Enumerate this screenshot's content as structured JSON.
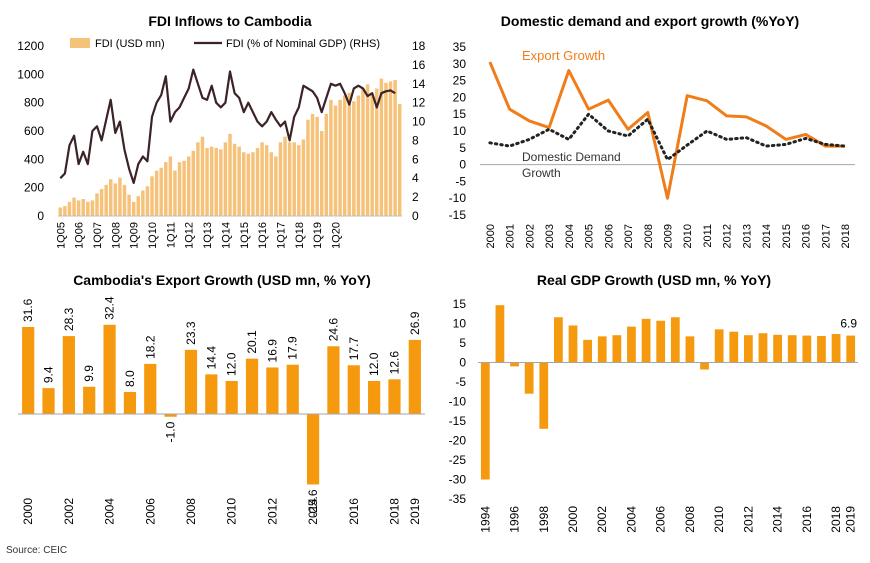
{
  "source": "Source: CEIC",
  "charts": [
    {
      "type": "bar",
      "title": "FDI Inflows to Cambodia",
      "legend": [
        "FDI (USD mn)",
        "FDI (% of Nominal GDP) (RHS)"
      ],
      "ylim": [
        0,
        1200
      ],
      "yticks": [
        0,
        200,
        400,
        600,
        800,
        1000,
        1200
      ],
      "y2lim": [
        0,
        18
      ],
      "y2ticks": [
        0,
        2,
        4,
        6,
        8,
        10,
        12,
        14,
        16,
        18
      ],
      "xticklabels": [
        "1Q05",
        "1Q06",
        "1Q07",
        "1Q08",
        "1Q09",
        "1Q10",
        "1Q11",
        "1Q12",
        "1Q13",
        "1Q14",
        "1Q15",
        "1Q16",
        "1Q17",
        "1Q18",
        "1Q19",
        "1Q20"
      ],
      "colors": {
        "bar": "#F6C27A",
        "line": "#3B2326"
      },
      "series": [
        {
          "name": "FDI (USD mn)",
          "values": [
            60,
            70,
            100,
            130,
            110,
            120,
            100,
            110,
            160,
            190,
            220,
            260,
            230,
            270,
            220,
            150,
            100,
            140,
            180,
            210,
            280,
            320,
            340,
            380,
            420,
            320,
            380,
            390,
            420,
            460,
            520,
            560,
            480,
            490,
            480,
            470,
            520,
            580,
            510,
            490,
            450,
            440,
            450,
            480,
            520,
            500,
            450,
            420,
            520,
            560,
            520,
            520,
            500,
            540,
            680,
            720,
            700,
            600,
            720,
            820,
            780,
            820,
            850,
            870,
            810,
            850,
            900,
            930,
            860,
            900,
            970,
            940,
            950,
            960,
            790
          ]
        },
        {
          "name": "FDI (% of Nominal GDP) (RHS)",
          "values": [
            4.0,
            4.5,
            7.5,
            8.5,
            5.5,
            6.8,
            5.5,
            9.0,
            9.5,
            8.0,
            10.2,
            12.3,
            8.8,
            10.0,
            7.0,
            5.0,
            3.5,
            5.5,
            6.3,
            5.8,
            10.5,
            12.0,
            12.8,
            14.8,
            10.0,
            11.0,
            11.5,
            12.5,
            13.5,
            15.5,
            14.0,
            12.5,
            12.3,
            13.8,
            12.0,
            11.5,
            12.0,
            15.3,
            13.0,
            12.5,
            11.0,
            12.0,
            11.0,
            10.0,
            9.5,
            10.0,
            11.0,
            10.2,
            9.5,
            10.0,
            8.0,
            10.5,
            11.5,
            13.8,
            13.5,
            13.2,
            12.5,
            11.0,
            12.5,
            14.0,
            13.8,
            14.0,
            13.0,
            11.8,
            13.5,
            13.8,
            13.5,
            12.7,
            13.0,
            11.5,
            13.0,
            13.2,
            13.3,
            13.0
          ]
        }
      ]
    },
    {
      "type": "line",
      "title": "Domestic demand and export growth (%YoY)",
      "labels": {
        "export": "Export Growth",
        "domestic1": "Domestic Demand",
        "domestic2": "Growth"
      },
      "ylim": [
        -15,
        35
      ],
      "yticks": [
        -15,
        -10,
        -5,
        0,
        5,
        10,
        15,
        20,
        25,
        30,
        35
      ],
      "x": [
        "2000",
        "2001",
        "2002",
        "2003",
        "2004",
        "2005",
        "2006",
        "2007",
        "2008",
        "2009",
        "2010",
        "2011",
        "2012",
        "2013",
        "2014",
        "2015",
        "2016",
        "2017",
        "2018"
      ],
      "colors": {
        "export": "#F07D1A",
        "domestic": "#222222"
      },
      "series": [
        {
          "name": "Export Growth",
          "values": [
            30.5,
            16.5,
            13.0,
            11.0,
            28.0,
            16.5,
            19.2,
            10.5,
            15.5,
            -10.0,
            20.5,
            19.0,
            14.5,
            14.2,
            11.5,
            7.5,
            9.0,
            5.5,
            5.5
          ]
        },
        {
          "name": "Domestic Demand Growth",
          "values": [
            6.5,
            5.5,
            7.5,
            10.5,
            7.5,
            15.0,
            10.0,
            8.5,
            13.5,
            1.5,
            5.8,
            10.0,
            7.5,
            8.0,
            5.5,
            6.0,
            7.8,
            6.0,
            5.5
          ]
        }
      ]
    },
    {
      "type": "bar",
      "title": "Cambodia's Export Growth (USD mn, % YoY)",
      "categories": [
        "2000",
        "2001",
        "2002",
        "2003",
        "2004",
        "2005",
        "2006",
        "2007",
        "2008",
        "2009",
        "2010",
        "2011",
        "2012",
        "2013",
        "2014",
        "2015",
        "2016",
        "2017",
        "2018",
        "2019"
      ],
      "xticklabels": [
        "2000",
        "2002",
        "2004",
        "2006",
        "2008",
        "2010",
        "2012",
        "2014",
        "2016",
        "2018",
        "2019"
      ],
      "values": [
        31.6,
        9.4,
        28.3,
        9.9,
        32.4,
        8.0,
        18.2,
        -1.0,
        23.3,
        14.4,
        12.0,
        20.1,
        16.9,
        17.9,
        -25.6,
        24.6,
        17.7,
        12.0,
        12.6,
        26.9
      ],
      "labels": [
        "31.6",
        "9.4",
        "28.3",
        "9.9",
        "32.4",
        "8.0",
        "18.2",
        "-1.0",
        "23.3",
        "14.4",
        "12.0",
        "20.1",
        "16.9",
        "17.9",
        "-25.6",
        "24.6",
        "17.7",
        "12.0",
        "12.6",
        "26.9"
      ],
      "color": "#F59A0E"
    },
    {
      "type": "bar",
      "title": "Real GDP Growth (USD mn, % YoY)",
      "categories": [
        "1994",
        "1995",
        "1996",
        "1997",
        "1998",
        "1999",
        "2000",
        "2001",
        "2002",
        "2003",
        "2004",
        "2005",
        "2006",
        "2007",
        "2008",
        "2009",
        "2010",
        "2011",
        "2012",
        "2013",
        "2014",
        "2015",
        "2016",
        "2017",
        "2018",
        "2019"
      ],
      "xticklabels": [
        "1994",
        "1996",
        "1998",
        "2000",
        "2002",
        "2004",
        "2006",
        "2008",
        "2010",
        "2012",
        "2014",
        "2016",
        "2018",
        "2019"
      ],
      "values": [
        -30.0,
        14.7,
        -1.0,
        -8.0,
        -17.0,
        11.6,
        9.5,
        5.8,
        6.7,
        7.0,
        9.2,
        11.2,
        10.7,
        11.6,
        6.7,
        -1.8,
        8.5,
        7.9,
        7.0,
        7.5,
        7.1,
        7.0,
        6.9,
        6.8,
        7.3,
        6.9
      ],
      "annotation": "6.9",
      "ylim": [
        -35,
        15
      ],
      "yticks": [
        -35,
        -30,
        -25,
        -20,
        -15,
        -10,
        -5,
        0,
        5,
        10,
        15
      ],
      "color": "#F59A0E"
    }
  ]
}
